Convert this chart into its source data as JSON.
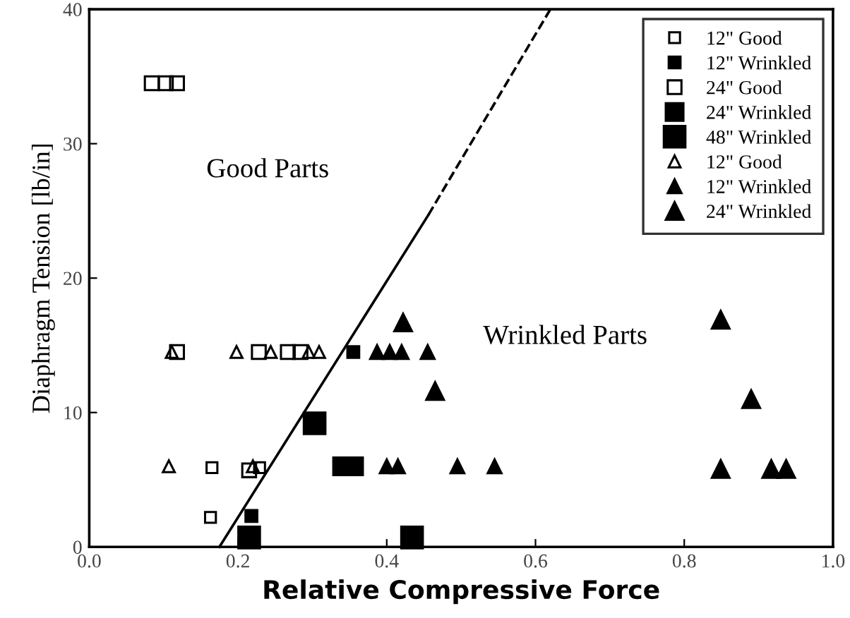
{
  "chart_data": {
    "type": "scatter",
    "xlabel": "Relative Compressive Force",
    "ylabel": "Diaphragm Tension [lb/in]",
    "xlim": [
      0,
      1
    ],
    "ylim": [
      0,
      40
    ],
    "xticks": [
      {
        "value": 0,
        "label": "0.0"
      },
      0.2,
      0.4,
      0.6,
      0.8,
      {
        "value": 1,
        "label": "1.0"
      }
    ],
    "yticks": [
      0,
      10,
      20,
      30,
      40
    ],
    "legend": "top right",
    "annotations": [
      "Good Parts",
      "Wrinkled Parts"
    ],
    "series": [
      {
        "name": "12\" Good",
        "marker": "square",
        "color": "#000000",
        "x": [
          0.163,
          0.165,
          0.229
        ],
        "values": [
          2.2,
          5.9,
          5.9
        ]
      },
      {
        "name": "12\" Wrinkled",
        "marker": "square",
        "color": "#000000",
        "x": [
          0.218,
          0.355
        ],
        "values": [
          2.3,
          14.5
        ]
      },
      {
        "name": "24\" Good",
        "marker": "square",
        "color": "#000000",
        "x": [
          0.084,
          0.103,
          0.118,
          0.118,
          0.228,
          0.267,
          0.284,
          0.215
        ],
        "values": [
          34.5,
          34.5,
          34.5,
          14.5,
          14.5,
          14.5,
          14.5,
          5.7
        ]
      },
      {
        "name": "24\" Wrinkled",
        "marker": "square",
        "color": "#000000",
        "x": [
          0.34,
          0.356
        ],
        "values": [
          6,
          6
        ]
      },
      {
        "name": "48\" Wrinkled",
        "marker": "square",
        "color": "#000000",
        "x": [
          0.303,
          0.215,
          0.434
        ],
        "values": [
          9.2,
          0.7,
          0.7
        ]
      },
      {
        "name": "12\" Good",
        "marker": "triangle",
        "color": "#000000",
        "x": [
          0.111,
          0.198,
          0.244,
          0.295,
          0.309,
          0.107,
          0.22
        ],
        "values": [
          14.5,
          14.5,
          14.5,
          14.5,
          14.5,
          6,
          6
        ]
      },
      {
        "name": "12\" Wrinkled",
        "marker": "triangle",
        "color": "#000000",
        "x": [
          0.387,
          0.404,
          0.42,
          0.455,
          0.4,
          0.415,
          0.495,
          0.545
        ],
        "values": [
          14.5,
          14.5,
          14.5,
          14.5,
          6,
          6,
          6,
          6
        ]
      },
      {
        "name": "24\" Wrinkled",
        "marker": "triangle",
        "color": "#000000",
        "x": [
          0.422,
          0.465,
          0.849,
          0.89,
          0.849,
          0.917,
          0.937
        ],
        "values": [
          16.7,
          11.6,
          16.9,
          11.0,
          5.8,
          5.8,
          5.8
        ]
      },
      {
        "type": "line",
        "line_style": "solid",
        "marker": "none",
        "color": "#000000",
        "x": [
          0.175,
          0.456
        ],
        "values": [
          0,
          24.7
        ]
      },
      {
        "type": "line",
        "line_style": "dashed",
        "marker": "none",
        "color": "#000000",
        "x": [
          0.456,
          0.62
        ],
        "values": [
          24.7,
          40
        ]
      }
    ]
  }
}
